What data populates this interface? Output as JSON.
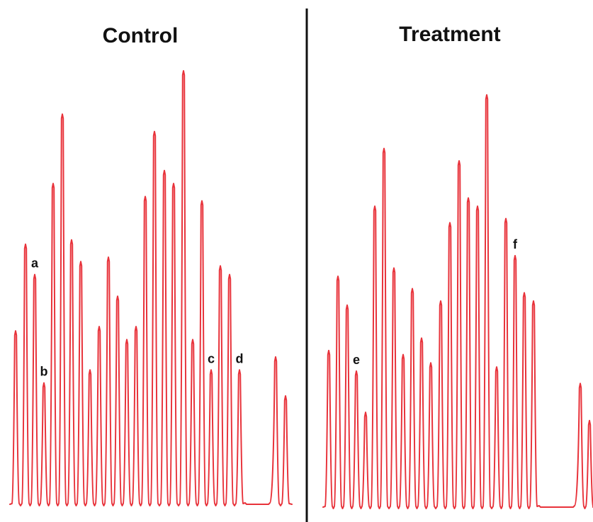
{
  "colors": {
    "trace": "#e8323a",
    "divider": "#111111",
    "text": "#111111",
    "background": "#ffffff"
  },
  "panels": [
    {
      "id": "control",
      "title": "Control",
      "peaks": [
        {
          "x": 22,
          "h": 0.4
        },
        {
          "x": 36,
          "h": 0.6
        },
        {
          "x": 49,
          "h": 0.53
        },
        {
          "x": 62,
          "h": 0.28
        },
        {
          "x": 75,
          "h": 0.74
        },
        {
          "x": 88,
          "h": 0.9
        },
        {
          "x": 101,
          "h": 0.61
        },
        {
          "x": 114,
          "h": 0.56
        },
        {
          "x": 127,
          "h": 0.31
        },
        {
          "x": 140,
          "h": 0.41
        },
        {
          "x": 153,
          "h": 0.57
        },
        {
          "x": 166,
          "h": 0.48
        },
        {
          "x": 179,
          "h": 0.38
        },
        {
          "x": 192,
          "h": 0.41
        },
        {
          "x": 205,
          "h": 0.71
        },
        {
          "x": 218,
          "h": 0.86
        },
        {
          "x": 232,
          "h": 0.77
        },
        {
          "x": 245,
          "h": 0.74
        },
        {
          "x": 259,
          "h": 1.0
        },
        {
          "x": 272,
          "h": 0.38
        },
        {
          "x": 285,
          "h": 0.7
        },
        {
          "x": 298,
          "h": 0.31
        },
        {
          "x": 311,
          "h": 0.55
        },
        {
          "x": 324,
          "h": 0.53
        },
        {
          "x": 338,
          "h": 0.31
        },
        {
          "x": 389,
          "h": 0.34
        },
        {
          "x": 403,
          "h": 0.25
        }
      ],
      "labels": [
        {
          "text": "a",
          "peak": 2
        },
        {
          "text": "b",
          "peak": 3
        },
        {
          "text": "c",
          "peak": 21
        },
        {
          "text": "d",
          "peak": 24
        }
      ]
    },
    {
      "id": "treatment",
      "title": "Treatment",
      "peaks": [
        {
          "x": 464,
          "h": 0.38
        },
        {
          "x": 477,
          "h": 0.56
        },
        {
          "x": 490,
          "h": 0.49
        },
        {
          "x": 503,
          "h": 0.33
        },
        {
          "x": 516,
          "h": 0.23
        },
        {
          "x": 529,
          "h": 0.73
        },
        {
          "x": 542,
          "h": 0.87
        },
        {
          "x": 556,
          "h": 0.58
        },
        {
          "x": 569,
          "h": 0.37
        },
        {
          "x": 582,
          "h": 0.53
        },
        {
          "x": 595,
          "h": 0.41
        },
        {
          "x": 608,
          "h": 0.35
        },
        {
          "x": 622,
          "h": 0.5
        },
        {
          "x": 635,
          "h": 0.69
        },
        {
          "x": 648,
          "h": 0.84
        },
        {
          "x": 661,
          "h": 0.75
        },
        {
          "x": 674,
          "h": 0.73
        },
        {
          "x": 687,
          "h": 1.0
        },
        {
          "x": 701,
          "h": 0.34
        },
        {
          "x": 714,
          "h": 0.7
        },
        {
          "x": 727,
          "h": 0.61
        },
        {
          "x": 740,
          "h": 0.52
        },
        {
          "x": 753,
          "h": 0.5
        },
        {
          "x": 819,
          "h": 0.3
        },
        {
          "x": 832,
          "h": 0.21
        }
      ],
      "labels": [
        {
          "text": "e",
          "peak": 3
        },
        {
          "text": "f",
          "peak": 20
        }
      ]
    }
  ]
}
